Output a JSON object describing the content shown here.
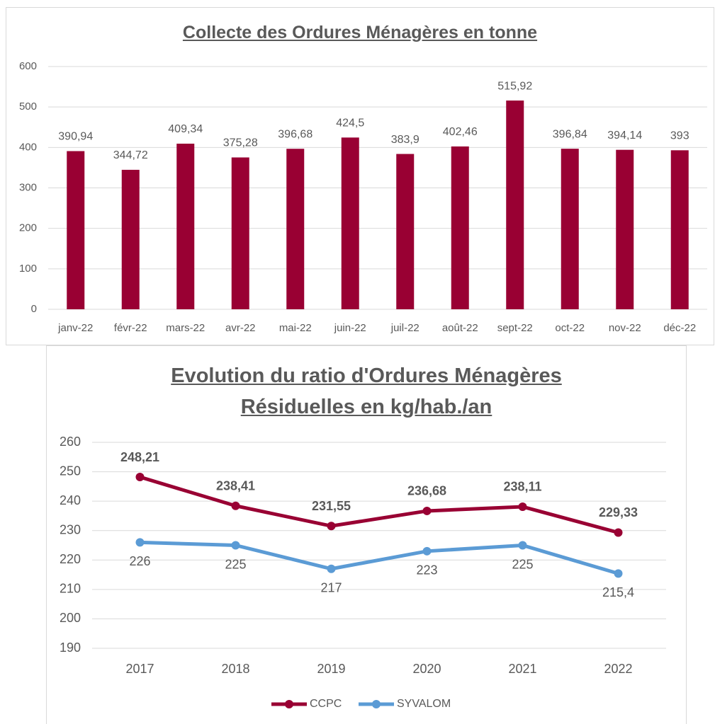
{
  "chart_data": [
    {
      "type": "bar",
      "title": "Collecte des Ordures Ménagères en tonne",
      "categories": [
        "janv-22",
        "févr-22",
        "mars-22",
        "avr-22",
        "mai-22",
        "juin-22",
        "juil-22",
        "août-22",
        "sept-22",
        "oct-22",
        "nov-22",
        "déc-22"
      ],
      "values": [
        390.94,
        344.72,
        409.34,
        375.28,
        396.68,
        424.5,
        383.9,
        402.46,
        515.92,
        396.84,
        394.14,
        393
      ],
      "value_labels": [
        "390,94",
        "344,72",
        "409,34",
        "375,28",
        "396,68",
        "424,5",
        "383,9",
        "402,46",
        "515,92",
        "396,84",
        "394,14",
        "393"
      ],
      "color": "#990033",
      "ylim": [
        0,
        600
      ],
      "yticks": [
        0,
        100,
        200,
        300,
        400,
        500,
        600
      ],
      "grid": true
    },
    {
      "type": "line",
      "title": "Evolution du ratio d'Ordures Ménagères Résiduelles en kg/hab./an",
      "categories": [
        "2017",
        "2018",
        "2019",
        "2020",
        "2021",
        "2022"
      ],
      "series": [
        {
          "name": "CCPC",
          "color": "#990033",
          "values": [
            248.21,
            238.41,
            231.55,
            236.68,
            238.11,
            229.33
          ],
          "value_labels": [
            "248,21",
            "238,41",
            "231,55",
            "236,68",
            "238,11",
            "229,33"
          ]
        },
        {
          "name": "SYVALOM",
          "color": "#5b9bd5",
          "values": [
            226,
            225,
            217,
            223,
            225,
            215.4
          ],
          "value_labels": [
            "226",
            "225",
            "217",
            "223",
            "225",
            "215,4"
          ]
        }
      ],
      "ylim": [
        190,
        260
      ],
      "yticks": [
        190,
        200,
        210,
        220,
        230,
        240,
        250,
        260
      ],
      "grid": true,
      "legend": "bottom"
    }
  ]
}
